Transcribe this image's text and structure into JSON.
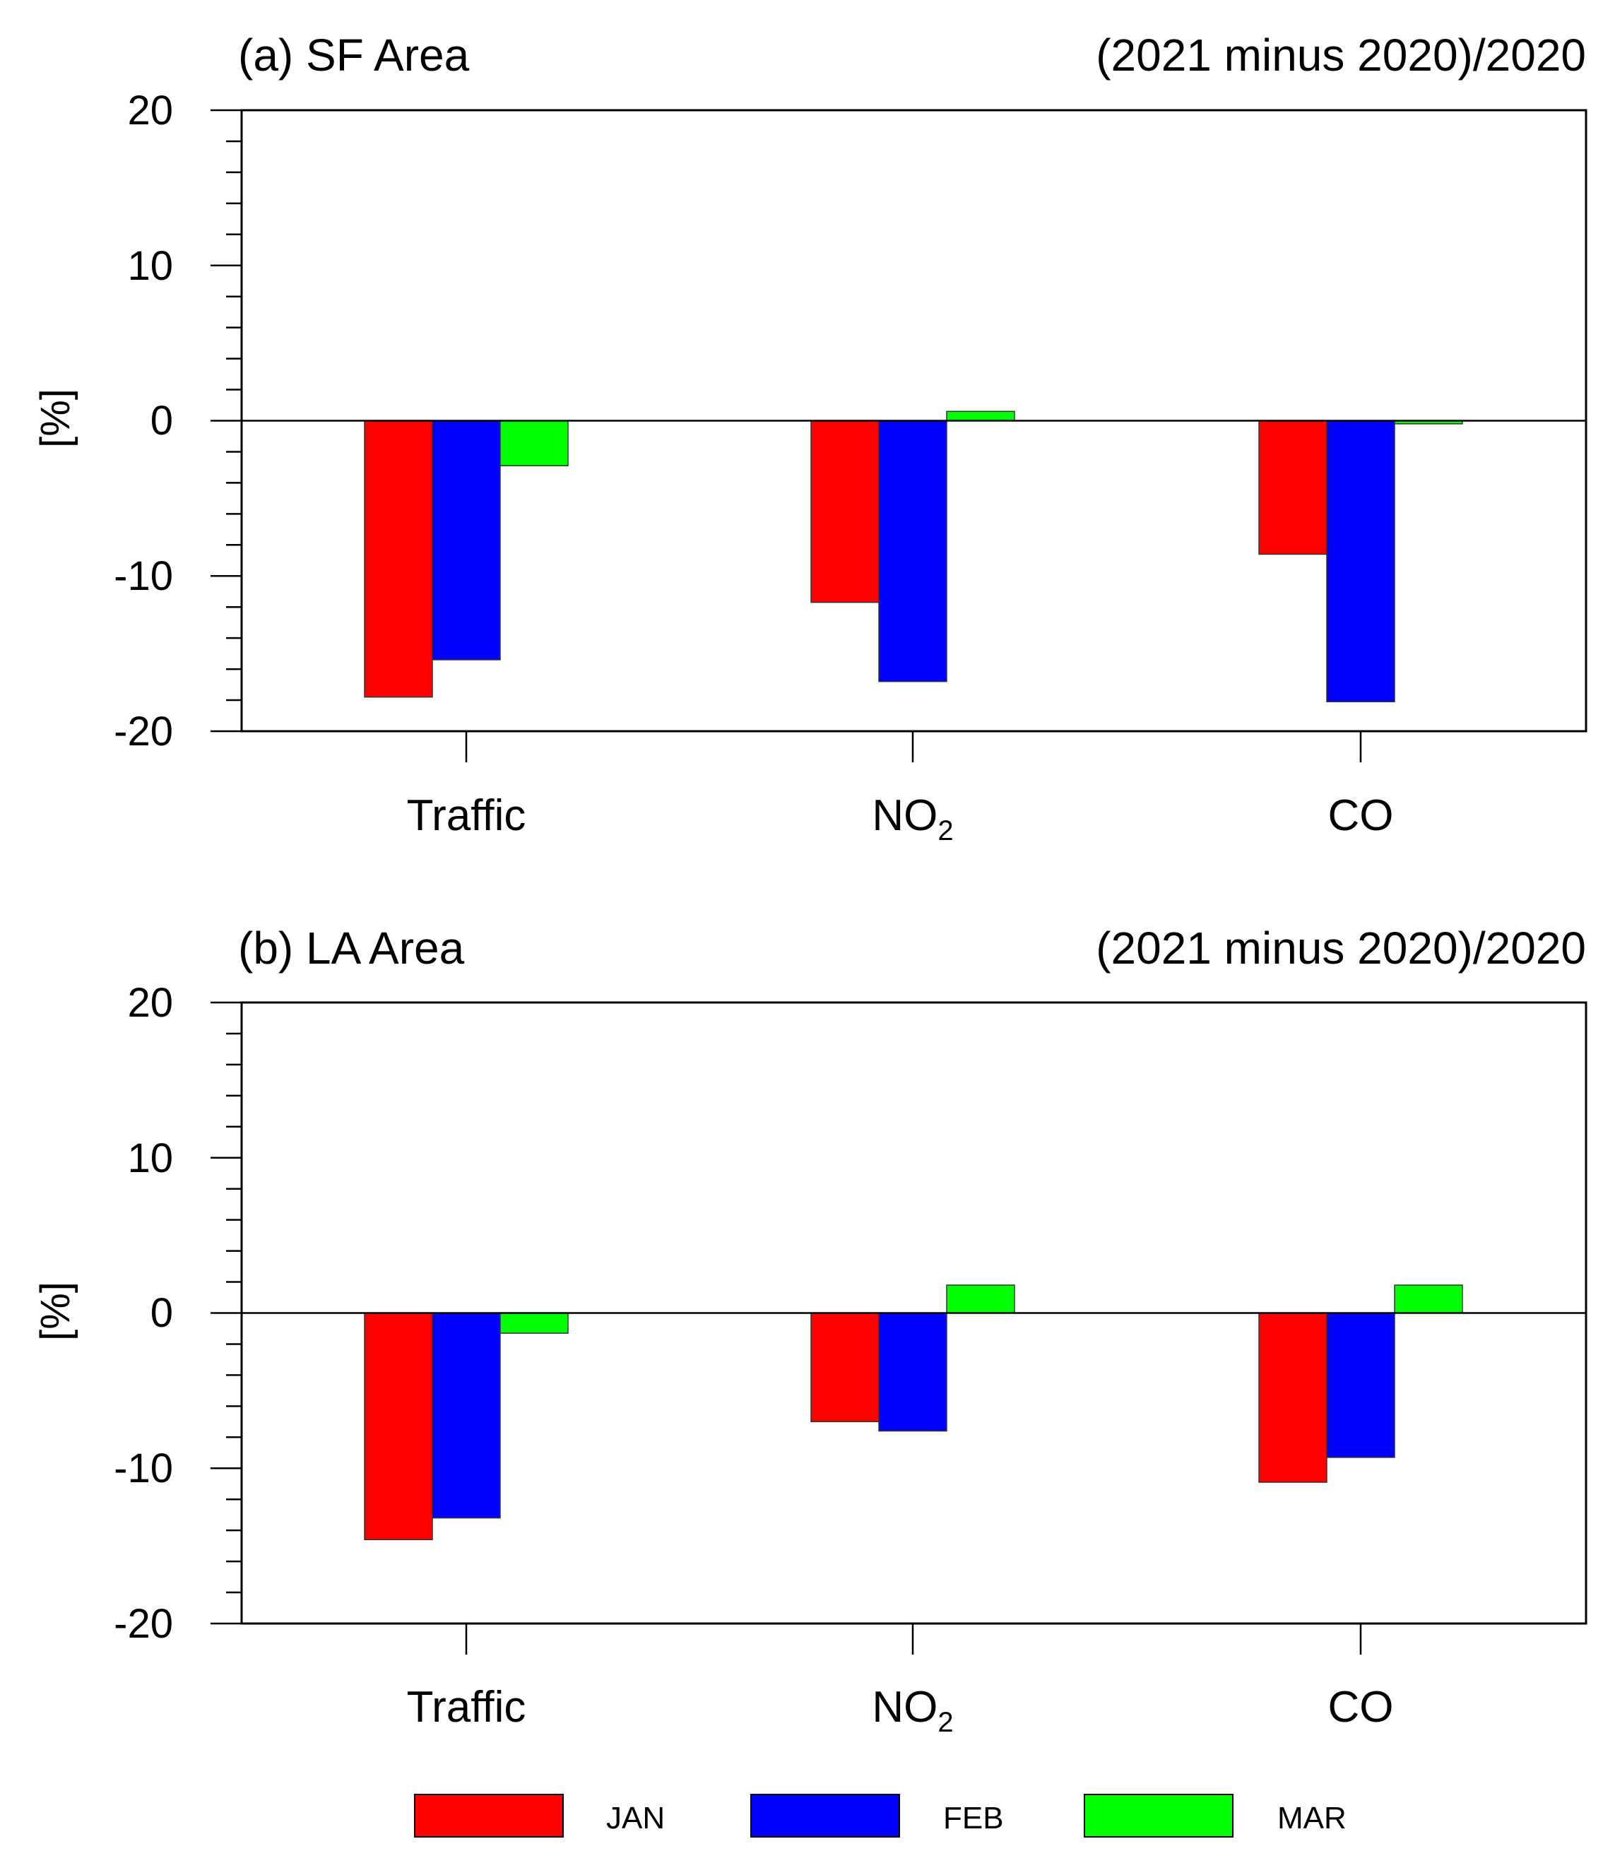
{
  "chart_data": [
    {
      "type": "bar",
      "title": "(a) SF Area",
      "subtitle": "(2021 minus 2020)/2020",
      "xlabel": "",
      "ylabel": "[%]",
      "ylim": [
        -20,
        20
      ],
      "yticks": [
        "20",
        "10",
        "0",
        "-10",
        "-20"
      ],
      "categories": [
        {
          "label": "Traffic",
          "sub": ""
        },
        {
          "label": "NO",
          "sub": "2"
        },
        {
          "label": "CO",
          "sub": ""
        }
      ],
      "series": [
        {
          "name": "JAN",
          "values": [
            -17.8,
            -11.7,
            -8.6
          ]
        },
        {
          "name": "FEB",
          "values": [
            -15.4,
            -16.8,
            -18.1
          ]
        },
        {
          "name": "MAR",
          "values": [
            -2.9,
            0.6,
            -0.2
          ]
        }
      ]
    },
    {
      "type": "bar",
      "title": "(b) LA Area",
      "subtitle": "(2021 minus 2020)/2020",
      "xlabel": "",
      "ylabel": "[%]",
      "ylim": [
        -20,
        20
      ],
      "yticks": [
        "20",
        "10",
        "0",
        "-10",
        "-20"
      ],
      "categories": [
        {
          "label": "Traffic",
          "sub": ""
        },
        {
          "label": "NO",
          "sub": "2"
        },
        {
          "label": "CO",
          "sub": ""
        }
      ],
      "series": [
        {
          "name": "JAN",
          "values": [
            -14.6,
            -7.0,
            -10.9
          ]
        },
        {
          "name": "FEB",
          "values": [
            -13.2,
            -7.6,
            -9.3
          ]
        },
        {
          "name": "MAR",
          "values": [
            -1.3,
            1.8,
            1.8
          ]
        }
      ]
    }
  ],
  "legend": {
    "position": "bottom-center",
    "items": [
      {
        "name": "JAN",
        "color": "#ff0000"
      },
      {
        "name": "FEB",
        "color": "#0000ff"
      },
      {
        "name": "MAR",
        "color": "#00ff00"
      }
    ]
  }
}
